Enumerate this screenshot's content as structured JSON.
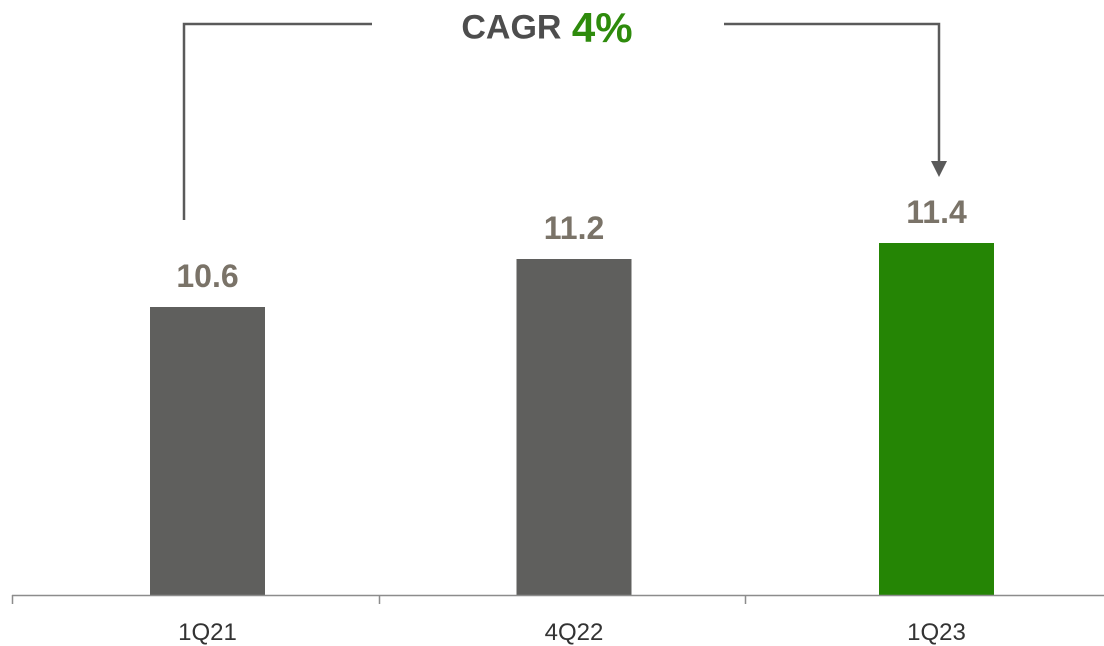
{
  "cagr": {
    "label": "CAGR",
    "value": "4%"
  },
  "colors": {
    "bar_default": "#5f5f5d",
    "bar_highlight": "#258505",
    "value_label": "#7a7368",
    "cagr_label": "#4d4d4d",
    "cagr_value": "#2e8b0c",
    "axis": "#8c8c8c",
    "bracket": "#5a5a5a",
    "tick_label": "#333333"
  },
  "chart_data": {
    "type": "bar",
    "categories": [
      "1Q21",
      "4Q22",
      "1Q23"
    ],
    "values": [
      10.6,
      11.2,
      11.4
    ],
    "value_labels": [
      "10.6",
      "11.2",
      "11.4"
    ],
    "highlight_index": 2,
    "title": "",
    "xlabel": "",
    "ylabel": "",
    "ylim": [
      7.0,
      11.4
    ],
    "grid": false,
    "legend": "none"
  }
}
